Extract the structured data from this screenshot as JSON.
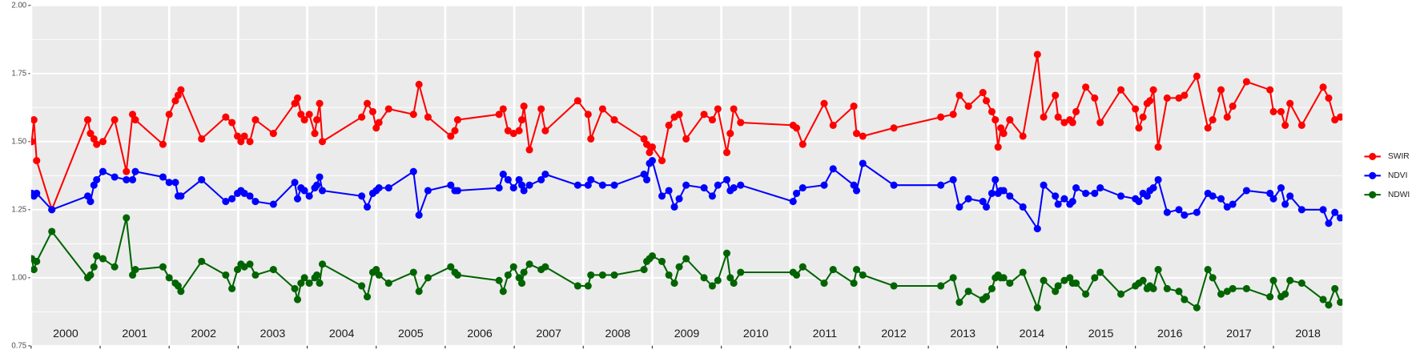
{
  "chart_data": {
    "type": "line",
    "x": [
      2000.01,
      2000.04,
      2000.08,
      2000.3,
      2000.82,
      2000.86,
      2000.91,
      2000.95,
      2001.04,
      2001.21,
      2001.38,
      2001.47,
      2001.51,
      2001.91,
      2002.0,
      2002.09,
      2002.13,
      2002.17,
      2002.47,
      2002.82,
      2002.91,
      2002.99,
      2003.04,
      2003.09,
      2003.17,
      2003.25,
      2003.51,
      2003.82,
      2003.86,
      2003.91,
      2003.96,
      2004.03,
      2004.11,
      2004.14,
      2004.18,
      2004.22,
      2004.79,
      2004.87,
      2004.95,
      2005.0,
      2005.04,
      2005.18,
      2005.54,
      2005.62,
      2005.75,
      2006.08,
      2006.14,
      2006.18,
      2006.78,
      2006.84,
      2006.91,
      2006.99,
      2007.07,
      2007.11,
      2007.14,
      2007.22,
      2007.39,
      2007.45,
      2007.92,
      2008.07,
      2008.11,
      2008.28,
      2008.45,
      2008.88,
      2008.92,
      2008.96,
      2009.0,
      2009.14,
      2009.24,
      2009.32,
      2009.39,
      2009.49,
      2009.75,
      2009.87,
      2009.95,
      2010.08,
      2010.13,
      2010.18,
      2010.28,
      2011.04,
      2011.09,
      2011.18,
      2011.49,
      2011.62,
      2011.92,
      2011.96,
      2012.05,
      2012.5,
      2013.18,
      2013.36,
      2013.45,
      2013.58,
      2013.79,
      2013.84,
      2013.92,
      2013.97,
      2014.01,
      2014.05,
      2014.09,
      2014.18,
      2014.37,
      2014.58,
      2014.67,
      2014.84,
      2014.88,
      2014.97,
      2015.05,
      2015.09,
      2015.14,
      2015.28,
      2015.41,
      2015.49,
      2015.79,
      2016.0,
      2016.05,
      2016.11,
      2016.17,
      2016.21,
      2016.26,
      2016.33,
      2016.46,
      2016.63,
      2016.71,
      2016.89,
      2017.05,
      2017.12,
      2017.24,
      2017.33,
      2017.41,
      2017.61,
      2017.95,
      2018.0,
      2018.11,
      2018.17,
      2018.24,
      2018.41,
      2018.72,
      2018.8,
      2018.89,
      2018.97
    ],
    "series": [
      {
        "name": "SWIR",
        "color": "#ff0000",
        "values": [
          1.5,
          1.58,
          1.43,
          1.25,
          1.58,
          1.53,
          1.51,
          1.49,
          1.5,
          1.58,
          1.39,
          1.6,
          1.58,
          1.49,
          1.6,
          1.65,
          1.67,
          1.69,
          1.51,
          1.59,
          1.57,
          1.52,
          1.5,
          1.52,
          1.5,
          1.58,
          1.53,
          1.64,
          1.66,
          1.6,
          1.58,
          1.6,
          1.53,
          1.58,
          1.64,
          1.5,
          1.59,
          1.64,
          1.61,
          1.55,
          1.57,
          1.62,
          1.6,
          1.71,
          1.59,
          1.52,
          1.54,
          1.58,
          1.6,
          1.62,
          1.54,
          1.53,
          1.54,
          1.58,
          1.63,
          1.47,
          1.62,
          1.54,
          1.65,
          1.6,
          1.51,
          1.62,
          1.58,
          1.51,
          1.49,
          1.46,
          1.48,
          1.43,
          1.56,
          1.59,
          1.6,
          1.51,
          1.6,
          1.58,
          1.62,
          1.46,
          1.53,
          1.62,
          1.57,
          1.56,
          1.55,
          1.49,
          1.64,
          1.56,
          1.63,
          1.53,
          1.52,
          1.55,
          1.59,
          1.6,
          1.67,
          1.63,
          1.68,
          1.65,
          1.61,
          1.58,
          1.48,
          1.55,
          1.53,
          1.58,
          1.52,
          1.82,
          1.59,
          1.67,
          1.59,
          1.57,
          1.58,
          1.57,
          1.61,
          1.7,
          1.66,
          1.57,
          1.69,
          1.62,
          1.55,
          1.59,
          1.64,
          1.65,
          1.69,
          1.48,
          1.66,
          1.66,
          1.67,
          1.74,
          1.55,
          1.58,
          1.69,
          1.59,
          1.63,
          1.72,
          1.69,
          1.61,
          1.61,
          1.56,
          1.64,
          1.56,
          1.7,
          1.66,
          1.58,
          1.59
        ]
      },
      {
        "name": "NDVI",
        "color": "#0000ff",
        "values": [
          1.31,
          1.3,
          1.31,
          1.25,
          1.3,
          1.28,
          1.34,
          1.36,
          1.39,
          1.37,
          1.36,
          1.36,
          1.39,
          1.37,
          1.35,
          1.35,
          1.3,
          1.3,
          1.36,
          1.28,
          1.29,
          1.31,
          1.32,
          1.31,
          1.3,
          1.28,
          1.27,
          1.35,
          1.29,
          1.33,
          1.32,
          1.3,
          1.33,
          1.34,
          1.37,
          1.32,
          1.3,
          1.26,
          1.31,
          1.32,
          1.33,
          1.33,
          1.39,
          1.23,
          1.32,
          1.34,
          1.32,
          1.32,
          1.33,
          1.38,
          1.36,
          1.33,
          1.36,
          1.34,
          1.32,
          1.34,
          1.36,
          1.38,
          1.34,
          1.34,
          1.36,
          1.34,
          1.34,
          1.38,
          1.36,
          1.42,
          1.43,
          1.3,
          1.32,
          1.26,
          1.29,
          1.34,
          1.33,
          1.3,
          1.34,
          1.36,
          1.32,
          1.33,
          1.34,
          1.28,
          1.31,
          1.33,
          1.34,
          1.4,
          1.34,
          1.32,
          1.42,
          1.34,
          1.34,
          1.36,
          1.26,
          1.29,
          1.28,
          1.26,
          1.31,
          1.36,
          1.31,
          1.32,
          1.32,
          1.3,
          1.26,
          1.18,
          1.34,
          1.3,
          1.27,
          1.29,
          1.27,
          1.28,
          1.33,
          1.31,
          1.31,
          1.33,
          1.3,
          1.29,
          1.28,
          1.31,
          1.3,
          1.32,
          1.33,
          1.36,
          1.24,
          1.25,
          1.23,
          1.24,
          1.31,
          1.3,
          1.29,
          1.26,
          1.27,
          1.32,
          1.31,
          1.29,
          1.33,
          1.27,
          1.3,
          1.25,
          1.25,
          1.2,
          1.24,
          1.22
        ]
      },
      {
        "name": "NDWI",
        "color": "#006400",
        "values": [
          1.07,
          1.03,
          1.06,
          1.17,
          1.0,
          1.01,
          1.04,
          1.08,
          1.07,
          1.04,
          1.22,
          1.01,
          1.03,
          1.04,
          1.0,
          0.98,
          0.97,
          0.95,
          1.06,
          1.01,
          0.96,
          1.03,
          1.05,
          1.04,
          1.05,
          1.01,
          1.03,
          0.96,
          0.92,
          0.98,
          1.0,
          0.98,
          1.0,
          1.01,
          0.98,
          1.05,
          0.97,
          0.93,
          1.02,
          1.03,
          1.01,
          0.98,
          1.02,
          0.95,
          1.0,
          1.04,
          1.02,
          1.01,
          0.99,
          0.95,
          1.01,
          1.04,
          1.0,
          0.98,
          1.02,
          1.05,
          1.03,
          1.04,
          0.97,
          0.97,
          1.01,
          1.01,
          1.01,
          1.03,
          1.06,
          1.07,
          1.08,
          1.06,
          1.01,
          0.98,
          1.04,
          1.07,
          1.0,
          0.97,
          0.99,
          1.09,
          1.0,
          0.98,
          1.02,
          1.02,
          1.01,
          1.04,
          0.98,
          1.03,
          0.98,
          1.03,
          1.01,
          0.97,
          0.97,
          1.0,
          0.91,
          0.95,
          0.92,
          0.93,
          0.96,
          1.0,
          1.01,
          1.0,
          1.0,
          0.98,
          1.02,
          0.89,
          0.99,
          0.95,
          0.97,
          0.99,
          1.0,
          0.98,
          0.98,
          0.94,
          1.0,
          1.02,
          0.94,
          0.97,
          0.98,
          0.99,
          0.96,
          0.97,
          0.96,
          1.03,
          0.96,
          0.95,
          0.92,
          0.89,
          1.03,
          1.0,
          0.94,
          0.95,
          0.96,
          0.96,
          0.93,
          0.99,
          0.93,
          0.94,
          0.99,
          0.98,
          0.92,
          0.9,
          0.96,
          0.91
        ]
      }
    ],
    "xlim": [
      2000,
      2019
    ],
    "xticks": [
      2000,
      2001,
      2002,
      2003,
      2004,
      2005,
      2006,
      2007,
      2008,
      2009,
      2010,
      2011,
      2012,
      2013,
      2014,
      2015,
      2016,
      2017,
      2018
    ],
    "ylim": [
      0.75,
      2.0
    ],
    "yticks": [
      {
        "value": 0.75,
        "label": "0.75"
      },
      {
        "value": 1.0,
        "label": "1.00"
      },
      {
        "value": 1.25,
        "label": "1.25"
      },
      {
        "value": 1.5,
        "label": "1.50"
      },
      {
        "value": 1.75,
        "label": "1.75"
      },
      {
        "value": 2.0,
        "label": "2.00"
      }
    ],
    "grid": true,
    "legend": "right"
  }
}
